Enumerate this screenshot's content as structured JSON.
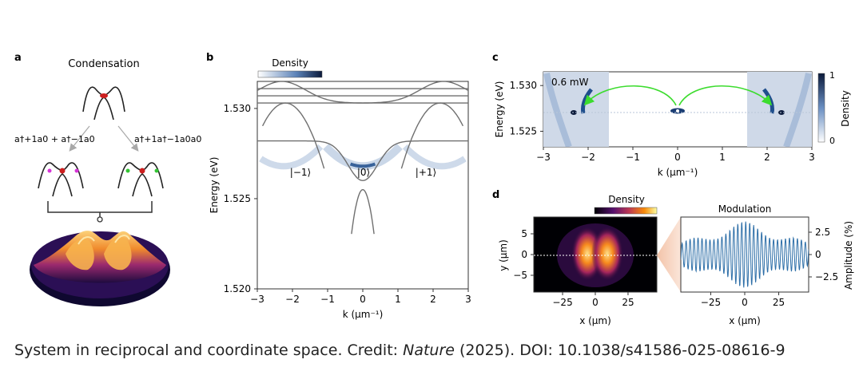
{
  "caption": {
    "pre": "System in reciprocal and coordinate space. Credit: ",
    "journal": "Nature",
    "post": " (2025). DOI: 10.1038/s41586-025-08616-9"
  },
  "panel_a": {
    "label": "a",
    "title": "Condensation",
    "left_operator": "a†+1a0 + a†−1a0",
    "right_operator": "a†+1a†−1a0a0"
  },
  "panel_b": {
    "label": "b",
    "colorbar_label": "Density",
    "state_labels": [
      "|−1⟩",
      "|0⟩",
      "|+1⟩"
    ],
    "xlabel": "k (μm⁻¹)",
    "ylabel": "Energy (eV)"
  },
  "panel_c": {
    "label": "c",
    "power_label": "0.6 mW",
    "xlabel": "k (μm⁻¹)",
    "ylabel": "Energy (eV)",
    "colorbar_label": "Density",
    "colorbar_ticks": [
      "1",
      "0"
    ]
  },
  "panel_d": {
    "label": "d",
    "density_label": "Density",
    "modulation_label": "Modulation",
    "left_xlabel": "x (μm)",
    "left_ylabel": "y (μm)",
    "right_xlabel": "x (μm)",
    "right_ylabel": "Amplitude (%)"
  },
  "colors": {
    "dispersion_line": "#6f6f6f",
    "density_blue": "#1f4e8c",
    "arrow_green": "#3cdc2e",
    "condensate_red": "#cc1f1f",
    "modulation_line": "#2e6fa8"
  },
  "chart_data": [
    {
      "panel": "b",
      "type": "line",
      "xlim": [
        -3,
        3
      ],
      "ylim": [
        1.52,
        1.5315
      ],
      "xticks": [
        -3,
        -2,
        -1,
        0,
        1,
        2,
        3
      ],
      "yticks": [
        1.52,
        1.525,
        1.53
      ],
      "xtick_labels": [
        "−3",
        "−2",
        "−1",
        "0",
        "1",
        "2",
        "3"
      ],
      "ytick_labels": [
        "1.520",
        "1.525",
        "1.530"
      ]
    },
    {
      "panel": "c",
      "type": "heatmap",
      "xlim": [
        -3,
        3
      ],
      "ylim": [
        1.5233,
        1.5315
      ],
      "xticks": [
        -3,
        -2,
        -1,
        0,
        1,
        2,
        3
      ],
      "yticks": [
        1.525,
        1.53
      ],
      "xtick_labels": [
        "−3",
        "−2",
        "−1",
        "0",
        "1",
        "2",
        "3"
      ],
      "ytick_labels": [
        "1.525",
        "1.530"
      ]
    },
    {
      "panel": "d-left",
      "type": "heatmap",
      "xticks": [
        -25,
        0,
        25
      ],
      "yticks": [
        5,
        0,
        -5
      ],
      "xtick_labels": [
        "−25",
        "0",
        "25"
      ],
      "ytick_labels": [
        "5",
        "0",
        "−5"
      ]
    },
    {
      "panel": "d-right",
      "type": "line",
      "xticks": [
        -25,
        0,
        25
      ],
      "yticks": [
        2.5,
        0,
        -2.5
      ],
      "xtick_labels": [
        "−25",
        "0",
        "25"
      ],
      "ytick_labels": [
        "2.5",
        "0",
        "−2.5"
      ]
    }
  ]
}
